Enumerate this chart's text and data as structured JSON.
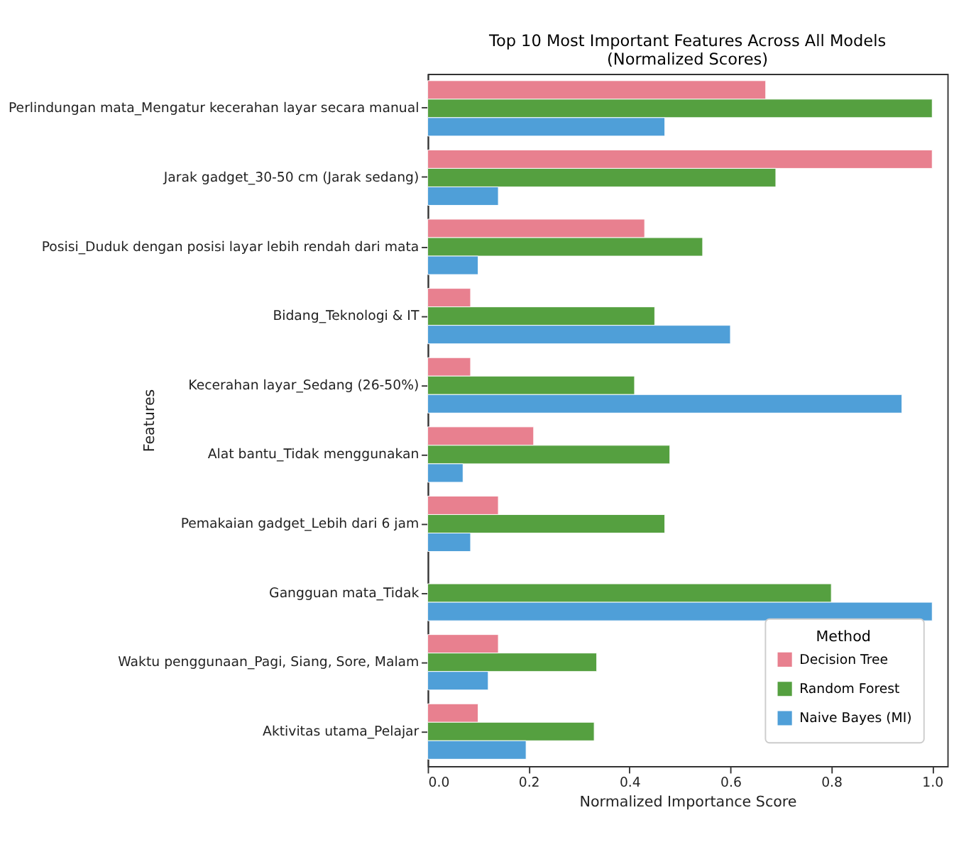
{
  "chart_data": {
    "type": "bar",
    "orientation": "horizontal",
    "title": "Top 10 Most Important Features Across All Models\n(Normalized Scores)",
    "xlabel": "Normalized Importance Score",
    "ylabel": "Features",
    "legend_title": "Method",
    "legend": "bottom right",
    "categories": [
      "Perlindungan mata_Mengatur kecerahan layar secara manual",
      "Jarak gadget_30-50 cm (Jarak sedang)",
      "Posisi_Duduk dengan posisi layar lebih rendah dari mata",
      "Bidang_Teknologi & IT",
      "Kecerahan layar_Sedang (26-50%)",
      "Alat bantu_Tidak menggunakan",
      "Pemakaian gadget_Lebih dari 6 jam",
      "Gangguan mata_Tidak",
      "Waktu penggunaan_Pagi, Siang, Sore, Malam",
      "Aktivitas utama_Pelajar"
    ],
    "series": [
      {
        "name": "Decision Tree",
        "color": "#e8808f",
        "values": [
          0.67,
          1.0,
          0.43,
          0.085,
          0.085,
          0.21,
          0.14,
          null,
          0.14,
          0.1
        ]
      },
      {
        "name": "Random Forest",
        "color": "#55a040",
        "values": [
          1.0,
          0.69,
          0.545,
          0.45,
          0.41,
          0.48,
          0.47,
          0.8,
          0.335,
          0.33
        ]
      },
      {
        "name": "Naive Bayes (MI)",
        "color": "#4f9fd8",
        "values": [
          0.47,
          0.14,
          0.1,
          0.6,
          0.94,
          0.07,
          0.085,
          1.0,
          0.12,
          0.195
        ]
      }
    ],
    "xlim": [
      0,
      1.03
    ],
    "xticks": [
      {
        "value": 0,
        "label": "0.0"
      },
      0.2,
      0.4,
      0.6,
      0.8,
      {
        "value": 1,
        "label": "1.0"
      }
    ]
  }
}
